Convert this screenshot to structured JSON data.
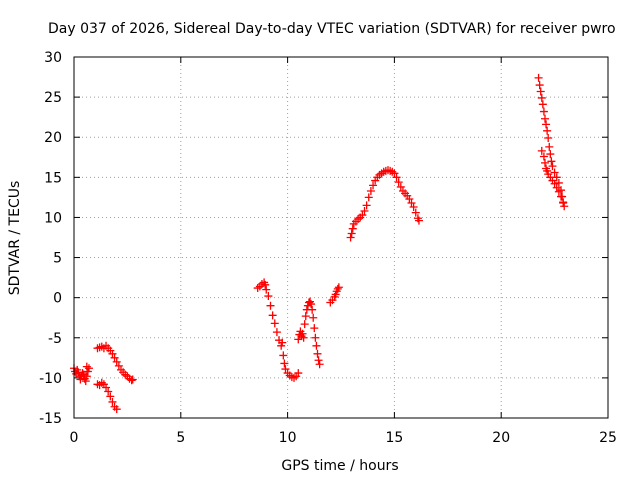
{
  "chart_data": {
    "type": "scatter",
    "title": "Day 037 of 2026, Sidereal Day-to-day VTEC variation (SDTVAR) for receiver pwro",
    "xlabel": "GPS time / hours",
    "ylabel": "SDTVAR / TECUs",
    "xlim": [
      0,
      25
    ],
    "ylim": [
      -15,
      30
    ],
    "xticks": [
      0,
      5,
      10,
      15,
      20,
      25
    ],
    "yticks": [
      -15,
      -10,
      -5,
      0,
      5,
      10,
      15,
      20,
      25,
      30
    ],
    "grid": true,
    "marker": "+",
    "color": "#ff0000",
    "series": [
      {
        "name": "SDTVAR",
        "segments": [
          [
            [
              0.0,
              -8.8
            ],
            [
              0.05,
              -9.2
            ],
            [
              0.1,
              -9.5
            ],
            [
              0.15,
              -9.0
            ],
            [
              0.2,
              -9.3
            ],
            [
              0.25,
              -9.8
            ],
            [
              0.3,
              -10.2
            ],
            [
              0.35,
              -9.7
            ],
            [
              0.4,
              -9.4
            ],
            [
              0.45,
              -9.6
            ],
            [
              0.5,
              -10.1
            ],
            [
              0.55,
              -10.4
            ],
            [
              0.6,
              -9.8
            ],
            [
              0.65,
              -9.2
            ],
            [
              0.7,
              -8.8
            ],
            [
              0.6,
              -8.6
            ]
          ],
          [
            [
              1.1,
              -6.3
            ],
            [
              1.2,
              -6.2
            ],
            [
              1.3,
              -6.1
            ],
            [
              1.4,
              -6.3
            ],
            [
              1.5,
              -6.0
            ],
            [
              1.6,
              -6.3
            ],
            [
              1.7,
              -6.6
            ],
            [
              1.8,
              -7.0
            ],
            [
              1.9,
              -7.5
            ],
            [
              2.0,
              -8.0
            ],
            [
              2.1,
              -8.5
            ],
            [
              2.2,
              -9.0
            ],
            [
              2.3,
              -9.3
            ],
            [
              2.4,
              -9.6
            ],
            [
              2.5,
              -9.8
            ],
            [
              2.6,
              -10.1
            ],
            [
              2.7,
              -10.3
            ],
            [
              2.75,
              -10.2
            ]
          ],
          [
            [
              1.1,
              -10.8
            ],
            [
              1.2,
              -10.9
            ],
            [
              1.3,
              -10.6
            ],
            [
              1.4,
              -10.8
            ],
            [
              1.5,
              -11.2
            ],
            [
              1.6,
              -11.7
            ],
            [
              1.7,
              -12.3
            ],
            [
              1.8,
              -13.0
            ],
            [
              1.9,
              -13.6
            ],
            [
              2.0,
              -13.9
            ]
          ],
          [
            [
              8.6,
              1.2
            ],
            [
              8.7,
              1.4
            ],
            [
              8.8,
              1.7
            ],
            [
              8.9,
              1.9
            ],
            [
              8.95,
              1.6
            ],
            [
              9.0,
              1.0
            ],
            [
              9.1,
              0.2
            ],
            [
              9.2,
              -1.0
            ],
            [
              9.3,
              -2.2
            ],
            [
              9.4,
              -3.2
            ],
            [
              9.5,
              -4.3
            ],
            [
              9.6,
              -5.3
            ],
            [
              9.7,
              -6.0
            ],
            [
              9.75,
              -5.6
            ],
            [
              9.8,
              -7.2
            ],
            [
              9.85,
              -8.2
            ],
            [
              9.9,
              -8.9
            ],
            [
              10.0,
              -9.4
            ],
            [
              10.1,
              -9.7
            ],
            [
              10.2,
              -9.9
            ],
            [
              10.3,
              -10.0
            ],
            [
              10.4,
              -9.8
            ],
            [
              10.5,
              -9.4
            ]
          ],
          [
            [
              10.5,
              -5.2
            ],
            [
              10.55,
              -4.6
            ],
            [
              10.6,
              -4.2
            ],
            [
              10.65,
              -4.8
            ],
            [
              10.7,
              -4.5
            ],
            [
              10.75,
              -5.0
            ],
            [
              10.8,
              -3.3
            ],
            [
              10.85,
              -2.3
            ],
            [
              10.9,
              -1.5
            ],
            [
              10.95,
              -1.0
            ],
            [
              11.0,
              -0.6
            ],
            [
              11.05,
              -0.5
            ],
            [
              11.1,
              -0.8
            ],
            [
              11.15,
              -1.5
            ],
            [
              11.2,
              -2.5
            ],
            [
              11.25,
              -3.8
            ],
            [
              11.3,
              -5.0
            ],
            [
              11.35,
              -6.0
            ],
            [
              11.4,
              -7.0
            ],
            [
              11.45,
              -7.8
            ],
            [
              11.5,
              -8.3
            ]
          ],
          [
            [
              12.0,
              -0.6
            ],
            [
              12.1,
              -0.3
            ],
            [
              12.2,
              0.1
            ],
            [
              12.25,
              0.4
            ],
            [
              12.3,
              0.8
            ],
            [
              12.35,
              1.1
            ],
            [
              12.4,
              1.3
            ]
          ],
          [
            [
              12.95,
              7.5
            ],
            [
              13.0,
              8.0
            ],
            [
              13.05,
              8.6
            ],
            [
              13.1,
              9.2
            ],
            [
              13.2,
              9.5
            ],
            [
              13.3,
              9.8
            ],
            [
              13.4,
              10.0
            ],
            [
              13.5,
              10.3
            ],
            [
              13.6,
              10.8
            ],
            [
              13.7,
              11.5
            ],
            [
              13.8,
              12.5
            ],
            [
              13.9,
              13.3
            ],
            [
              14.0,
              14.0
            ],
            [
              14.1,
              14.6
            ],
            [
              14.2,
              15.0
            ],
            [
              14.3,
              15.3
            ],
            [
              14.4,
              15.5
            ],
            [
              14.5,
              15.7
            ],
            [
              14.6,
              15.8
            ],
            [
              14.7,
              15.9
            ],
            [
              14.8,
              15.8
            ],
            [
              14.9,
              15.7
            ],
            [
              15.0,
              15.5
            ],
            [
              15.1,
              15.0
            ],
            [
              15.2,
              14.4
            ],
            [
              15.3,
              13.8
            ],
            [
              15.4,
              13.3
            ],
            [
              15.5,
              13.0
            ],
            [
              15.6,
              12.7
            ],
            [
              15.7,
              12.3
            ],
            [
              15.8,
              11.8
            ],
            [
              15.9,
              11.3
            ],
            [
              16.0,
              10.6
            ],
            [
              16.1,
              9.9
            ],
            [
              16.15,
              9.6
            ]
          ],
          [
            [
              21.75,
              27.4
            ],
            [
              21.8,
              26.5
            ],
            [
              21.85,
              25.7
            ],
            [
              21.9,
              24.9
            ],
            [
              21.95,
              24.1
            ],
            [
              22.0,
              23.2
            ],
            [
              22.05,
              22.3
            ],
            [
              22.1,
              21.6
            ],
            [
              22.15,
              20.8
            ],
            [
              22.2,
              19.9
            ],
            [
              22.25,
              18.8
            ],
            [
              22.3,
              17.9
            ],
            [
              22.35,
              17.0
            ],
            [
              22.4,
              16.4
            ],
            [
              22.5,
              15.6
            ],
            [
              22.6,
              15.0
            ],
            [
              22.7,
              14.3
            ],
            [
              22.8,
              13.4
            ],
            [
              22.85,
              12.6
            ],
            [
              22.9,
              11.8
            ],
            [
              22.95,
              11.4
            ]
          ],
          [
            [
              21.9,
              18.3
            ],
            [
              22.0,
              17.6
            ],
            [
              22.05,
              16.8
            ],
            [
              22.1,
              16.1
            ],
            [
              22.15,
              15.8
            ],
            [
              22.2,
              15.4
            ],
            [
              22.3,
              15.0
            ],
            [
              22.4,
              14.6
            ],
            [
              22.5,
              14.2
            ],
            [
              22.6,
              13.7
            ],
            [
              22.7,
              13.2
            ],
            [
              22.8,
              12.6
            ],
            [
              22.9,
              11.9
            ]
          ]
        ]
      }
    ]
  }
}
